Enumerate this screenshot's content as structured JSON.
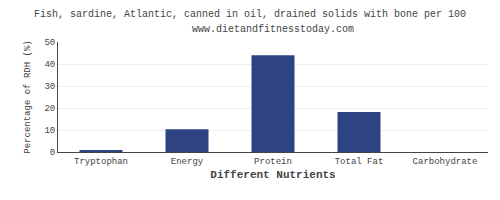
{
  "chart_data": {
    "type": "bar",
    "title": "Fish, sardine, Atlantic, canned in oil, drained solids with bone per 100",
    "subtitle": "www.dietandfitnesstoday.com",
    "xlabel": "Different Nutrients",
    "ylabel": "Percentage of RDH (%)",
    "categories": [
      "Tryptophan",
      "Energy",
      "Protein",
      "Total Fat",
      "Carbohydrate"
    ],
    "values": [
      0.5,
      10.3,
      44.0,
      18.2,
      0.0
    ],
    "color": "#2e4482",
    "ylim": [
      0,
      50
    ],
    "yticks": [
      0,
      10,
      20,
      30,
      40,
      50
    ],
    "grid": true
  }
}
